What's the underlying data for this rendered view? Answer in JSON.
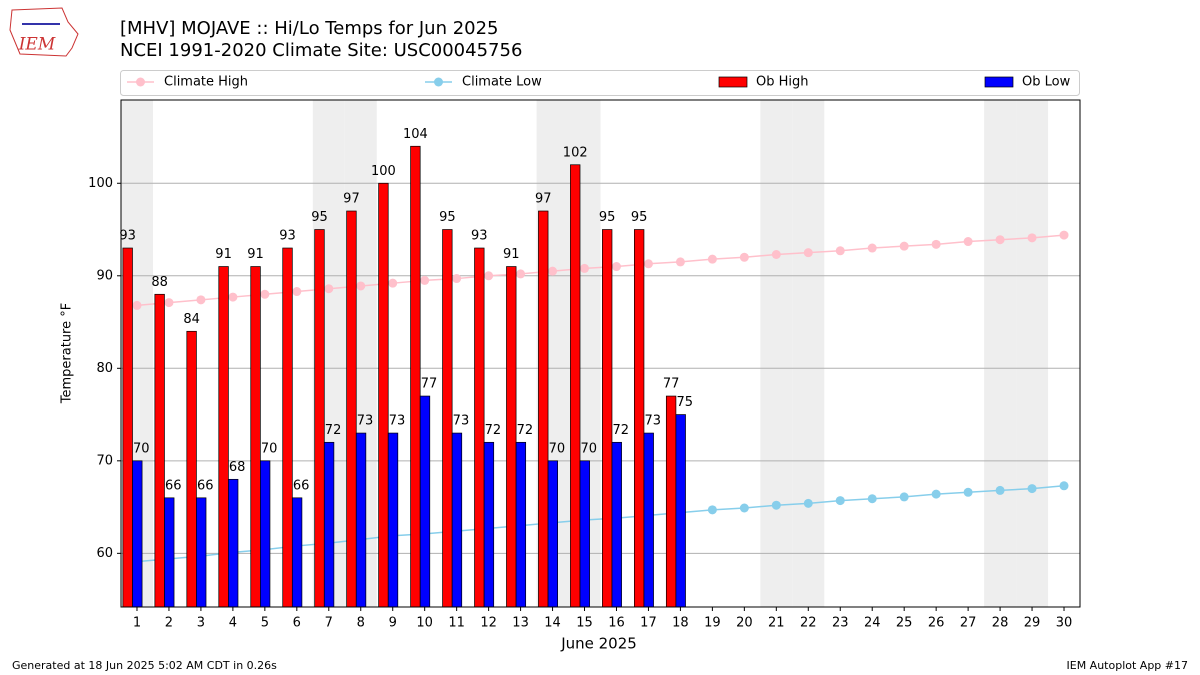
{
  "chart_data": {
    "type": "bar",
    "title": "[MHV] MOJAVE :: Hi/Lo Temps for Jun 2025",
    "subtitle": "NCEI 1991-2020 Climate Site: USC00045756",
    "x_label": "June 2025",
    "y_label": "Temperature °F",
    "footer_left": "Generated at 18 Jun 2025 5:02 AM CDT in 0.26s",
    "footer_right": "IEM Autoplot App #17",
    "logo": "IEM",
    "categories": [
      "1",
      "2",
      "3",
      "4",
      "5",
      "6",
      "7",
      "8",
      "9",
      "10",
      "11",
      "12",
      "13",
      "14",
      "15",
      "16",
      "17",
      "18",
      "19",
      "20",
      "21",
      "22",
      "23",
      "24",
      "25",
      "26",
      "27",
      "28",
      "29",
      "30"
    ],
    "ylim": [
      54.2,
      109
    ],
    "yticks": [
      60,
      70,
      80,
      90,
      100
    ],
    "grid": true,
    "series": [
      {
        "name": "Climate High",
        "type": "line",
        "color": "#ffc0cb",
        "values": [
          86.8,
          87.1,
          87.4,
          87.7,
          88.0,
          88.3,
          88.6,
          88.9,
          89.2,
          89.5,
          89.7,
          90.0,
          90.2,
          90.5,
          90.8,
          91.0,
          91.3,
          91.5,
          91.8,
          92.0,
          92.3,
          92.5,
          92.7,
          93.0,
          93.2,
          93.4,
          93.7,
          93.9,
          94.1,
          94.4
        ]
      },
      {
        "name": "Climate Low",
        "type": "line",
        "color": "#87ceeb",
        "values": [
          59.1,
          59.4,
          59.7,
          60.1,
          60.4,
          60.8,
          61.1,
          61.5,
          61.9,
          62.1,
          62.4,
          62.7,
          63.0,
          63.3,
          63.6,
          63.8,
          64.1,
          64.4,
          64.7,
          64.9,
          65.2,
          65.4,
          65.7,
          65.9,
          66.1,
          66.4,
          66.6,
          66.8,
          67.0,
          67.3
        ]
      },
      {
        "name": "Ob High",
        "type": "bar",
        "color": "#ff0000",
        "values": [
          93,
          88,
          84,
          91,
          91,
          93,
          95,
          97,
          100,
          104,
          95,
          93,
          91,
          97,
          102,
          95,
          95,
          77,
          null,
          null,
          null,
          null,
          null,
          null,
          null,
          null,
          null,
          null,
          null,
          null
        ]
      },
      {
        "name": "Ob Low",
        "type": "bar",
        "color": "#0000ff",
        "values": [
          70,
          66,
          66,
          68,
          70,
          66,
          72,
          73,
          73,
          77,
          73,
          72,
          72,
          70,
          70,
          72,
          73,
          75,
          null,
          null,
          null,
          null,
          null,
          null,
          null,
          null,
          null,
          null,
          null,
          null
        ]
      }
    ]
  }
}
